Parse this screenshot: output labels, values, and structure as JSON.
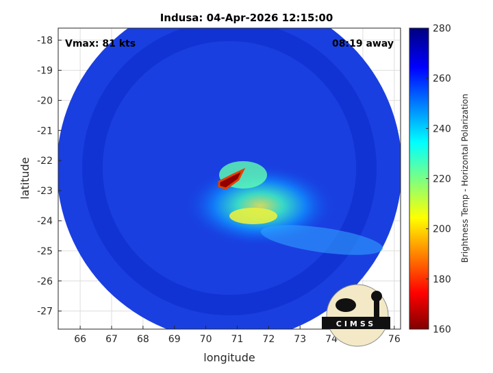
{
  "chart_data": {
    "type": "heatmap",
    "title": "Indusa: 04-Apr-2026 12:15:00",
    "xlabel": "longitude",
    "ylabel": "latitude",
    "xlim": [
      65.3,
      76.2
    ],
    "ylim": [
      -27.6,
      -17.6
    ],
    "xticks": [
      "66",
      "67",
      "68",
      "69",
      "70",
      "71",
      "72",
      "73",
      "74",
      "75",
      "76"
    ],
    "yticks": [
      "-18",
      "-19",
      "-20",
      "-21",
      "-22",
      "-23",
      "-24",
      "-25",
      "-26",
      "-27"
    ],
    "grid": true,
    "storm_center": {
      "lon": 70.7,
      "lat": -22.9
    },
    "colorbar": {
      "label": "Brightness Temp - Horizontal Polarization",
      "range": [
        160,
        280
      ],
      "ticks": [
        "160",
        "180",
        "200",
        "220",
        "240",
        "260",
        "280"
      ],
      "colormap": "jet"
    }
  },
  "annotations": {
    "vmax": "Vmax: 81 kts",
    "away": "08:19 away"
  },
  "logo": {
    "text": "CIMSS"
  }
}
